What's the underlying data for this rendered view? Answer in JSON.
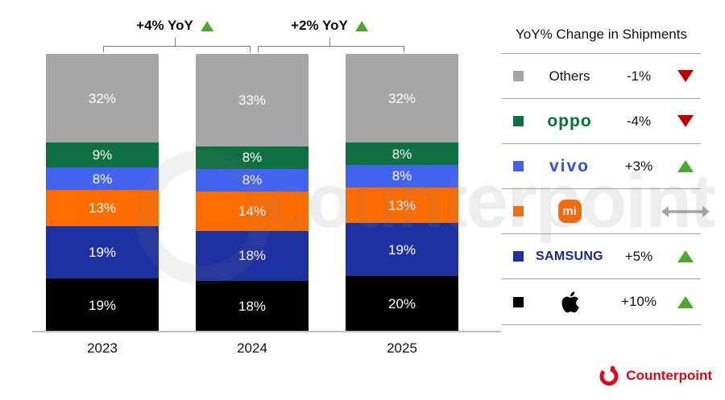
{
  "annotations": [
    {
      "label": "+4% YoY",
      "trend": "up"
    },
    {
      "label": "+2% YoY",
      "trend": "up"
    }
  ],
  "chart_data": {
    "type": "bar",
    "stacked": true,
    "categories": [
      "2023",
      "2024",
      "2025"
    ],
    "value_suffix": "%",
    "series": [
      {
        "name": "Apple",
        "color": "#000000",
        "values": [
          19,
          18,
          20
        ]
      },
      {
        "name": "Samsung",
        "color": "#1e31a0",
        "values": [
          19,
          18,
          19
        ]
      },
      {
        "name": "Xiaomi",
        "color": "#ff6d00",
        "values": [
          13,
          14,
          13
        ]
      },
      {
        "name": "vivo",
        "color": "#4163f0",
        "values": [
          8,
          8,
          8
        ]
      },
      {
        "name": "OPPO",
        "color": "#0e7040",
        "values": [
          9,
          8,
          8
        ]
      },
      {
        "name": "Others",
        "color": "#a6a6a6",
        "values": [
          32,
          33,
          32
        ]
      }
    ],
    "stack_order_top_to_bottom": [
      "Others",
      "OPPO",
      "vivo",
      "Xiaomi",
      "Samsung",
      "Apple"
    ],
    "annotations": [
      "+4% YoY",
      "+2% YoY"
    ],
    "legend_position": "right",
    "grid": false
  },
  "legend": {
    "title": "YoY% Change in Shipments",
    "rows": [
      {
        "brand": "Others",
        "logo": "text",
        "swatch": "#a6a6a6",
        "change": "-1%",
        "trend": "down"
      },
      {
        "brand": "oppo",
        "logo": "oppo",
        "swatch": "#0e7040",
        "change": "-4%",
        "trend": "down"
      },
      {
        "brand": "vivo",
        "logo": "vivo",
        "swatch": "#4163f0",
        "change": "+3%",
        "trend": "up"
      },
      {
        "brand": "mi",
        "logo": "mi",
        "swatch": "#ff6d00",
        "change": "",
        "trend": "flat"
      },
      {
        "brand": "SAMSUNG",
        "logo": "samsung",
        "swatch": "#1e31a0",
        "change": "+5%",
        "trend": "up"
      },
      {
        "brand": "Apple",
        "logo": "apple",
        "swatch": "#000000",
        "change": "+10%",
        "trend": "up"
      }
    ]
  },
  "watermark": "counterpoint",
  "footer": {
    "brand": "Counterpoint"
  },
  "colors": {
    "up_green": "#4ea72e",
    "down_red": "#c00000",
    "flat_gray": "#a6a6a6",
    "bracket_gray": "#808080",
    "axis_gray": "#bfbfbf",
    "counterpoint_red": "#e30613"
  }
}
